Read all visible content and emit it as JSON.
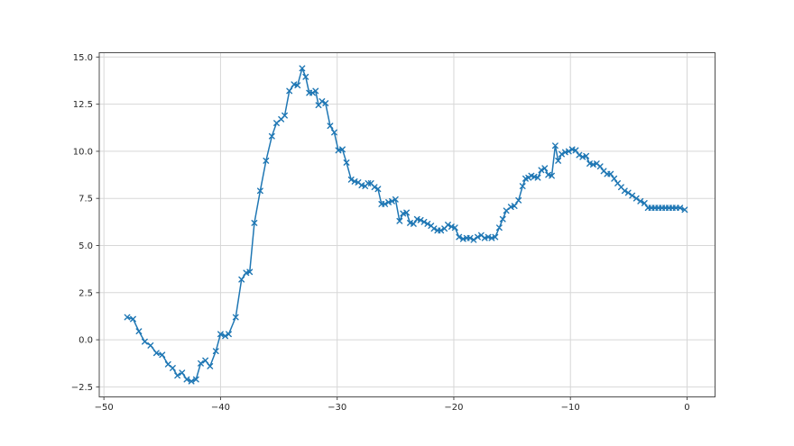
{
  "chart_data": {
    "type": "line",
    "title": "",
    "xlabel": "",
    "ylabel": "",
    "grid": true,
    "legend": null,
    "xlim": [
      -50.4,
      2.4
    ],
    "ylim": [
      -3.03,
      15.23
    ],
    "x_ticks": [
      -50,
      -40,
      -30,
      -20,
      -10,
      0
    ],
    "x_tick_labels": [
      "−50",
      "−40",
      "−30",
      "−20",
      "−10",
      "0"
    ],
    "y_ticks": [
      -2.5,
      0.0,
      2.5,
      5.0,
      7.5,
      10.0,
      12.5,
      15.0
    ],
    "y_tick_labels": [
      "−2.5",
      "0.0",
      "2.5",
      "5.0",
      "7.5",
      "10.0",
      "12.5",
      "15.0"
    ],
    "colors": {
      "line": "#1f77b4",
      "grid": "#d7d7d7",
      "spine": "#4d4d4d",
      "tick": "#4d4d4d",
      "text": "#262626",
      "background": "#ffffff"
    },
    "marker": "x",
    "series": [
      {
        "name": "series-1",
        "points": [
          [
            -48.0,
            1.2
          ],
          [
            -47.5,
            1.1
          ],
          [
            -47.0,
            0.45
          ],
          [
            -46.5,
            -0.1
          ],
          [
            -46.0,
            -0.3
          ],
          [
            -45.5,
            -0.7
          ],
          [
            -45.0,
            -0.8
          ],
          [
            -44.5,
            -1.3
          ],
          [
            -44.1,
            -1.5
          ],
          [
            -43.7,
            -1.9
          ],
          [
            -43.3,
            -1.75
          ],
          [
            -42.9,
            -2.1
          ],
          [
            -42.5,
            -2.2
          ],
          [
            -42.1,
            -2.1
          ],
          [
            -41.7,
            -1.25
          ],
          [
            -41.3,
            -1.1
          ],
          [
            -40.9,
            -1.4
          ],
          [
            -40.4,
            -0.6
          ],
          [
            -40.0,
            0.3
          ],
          [
            -39.6,
            0.2
          ],
          [
            -39.3,
            0.3
          ],
          [
            -38.7,
            1.2
          ],
          [
            -38.2,
            3.2
          ],
          [
            -37.8,
            3.55
          ],
          [
            -37.5,
            3.6
          ],
          [
            -37.1,
            6.2
          ],
          [
            -36.6,
            7.9
          ],
          [
            -36.1,
            9.5
          ],
          [
            -35.6,
            10.8
          ],
          [
            -35.2,
            11.5
          ],
          [
            -34.8,
            11.7
          ],
          [
            -34.5,
            11.9
          ],
          [
            -34.1,
            13.2
          ],
          [
            -33.7,
            13.55
          ],
          [
            -33.4,
            13.5
          ],
          [
            -33.0,
            14.4
          ],
          [
            -32.7,
            13.95
          ],
          [
            -32.4,
            13.1
          ],
          [
            -32.1,
            13.1
          ],
          [
            -31.85,
            13.2
          ],
          [
            -31.6,
            12.45
          ],
          [
            -31.3,
            12.65
          ],
          [
            -31.0,
            12.55
          ],
          [
            -30.6,
            11.35
          ],
          [
            -30.25,
            11.0
          ],
          [
            -29.9,
            10.05
          ],
          [
            -29.55,
            10.1
          ],
          [
            -29.2,
            9.4
          ],
          [
            -28.8,
            8.5
          ],
          [
            -28.5,
            8.4
          ],
          [
            -28.2,
            8.35
          ],
          [
            -27.9,
            8.2
          ],
          [
            -27.6,
            8.15
          ],
          [
            -27.35,
            8.3
          ],
          [
            -27.1,
            8.3
          ],
          [
            -26.8,
            8.1
          ],
          [
            -26.5,
            8.0
          ],
          [
            -26.2,
            7.2
          ],
          [
            -25.9,
            7.2
          ],
          [
            -25.6,
            7.3
          ],
          [
            -25.3,
            7.35
          ],
          [
            -25.0,
            7.45
          ],
          [
            -24.65,
            6.3
          ],
          [
            -24.35,
            6.7
          ],
          [
            -24.05,
            6.75
          ],
          [
            -23.75,
            6.2
          ],
          [
            -23.45,
            6.15
          ],
          [
            -23.15,
            6.4
          ],
          [
            -22.85,
            6.35
          ],
          [
            -22.55,
            6.25
          ],
          [
            -22.25,
            6.15
          ],
          [
            -21.95,
            6.05
          ],
          [
            -21.7,
            5.9
          ],
          [
            -21.4,
            5.8
          ],
          [
            -21.1,
            5.8
          ],
          [
            -20.8,
            5.9
          ],
          [
            -20.5,
            6.1
          ],
          [
            -20.2,
            6.0
          ],
          [
            -19.9,
            5.95
          ],
          [
            -19.55,
            5.45
          ],
          [
            -19.2,
            5.35
          ],
          [
            -18.9,
            5.4
          ],
          [
            -18.6,
            5.4
          ],
          [
            -18.3,
            5.3
          ],
          [
            -17.95,
            5.45
          ],
          [
            -17.65,
            5.55
          ],
          [
            -17.35,
            5.4
          ],
          [
            -17.05,
            5.45
          ],
          [
            -16.75,
            5.4
          ],
          [
            -16.45,
            5.45
          ],
          [
            -16.1,
            5.95
          ],
          [
            -15.8,
            6.4
          ],
          [
            -15.5,
            6.85
          ],
          [
            -15.1,
            7.05
          ],
          [
            -14.8,
            7.1
          ],
          [
            -14.45,
            7.4
          ],
          [
            -14.1,
            8.15
          ],
          [
            -13.85,
            8.55
          ],
          [
            -13.6,
            8.6
          ],
          [
            -13.35,
            8.7
          ],
          [
            -13.1,
            8.65
          ],
          [
            -12.8,
            8.6
          ],
          [
            -12.5,
            9.0
          ],
          [
            -12.2,
            9.1
          ],
          [
            -11.9,
            8.75
          ],
          [
            -11.6,
            8.7
          ],
          [
            -11.3,
            10.3
          ],
          [
            -11.05,
            9.5
          ],
          [
            -10.75,
            9.85
          ],
          [
            -10.45,
            9.95
          ],
          [
            -10.15,
            10.0
          ],
          [
            -9.85,
            10.1
          ],
          [
            -9.55,
            10.05
          ],
          [
            -9.25,
            9.8
          ],
          [
            -8.95,
            9.7
          ],
          [
            -8.65,
            9.75
          ],
          [
            -8.35,
            9.35
          ],
          [
            -8.05,
            9.3
          ],
          [
            -7.75,
            9.35
          ],
          [
            -7.45,
            9.2
          ],
          [
            -7.15,
            8.95
          ],
          [
            -6.85,
            8.8
          ],
          [
            -6.55,
            8.8
          ],
          [
            -6.25,
            8.55
          ],
          [
            -5.95,
            8.3
          ],
          [
            -5.65,
            8.1
          ],
          [
            -5.35,
            7.9
          ],
          [
            -5.05,
            7.8
          ],
          [
            -4.7,
            7.65
          ],
          [
            -4.35,
            7.5
          ],
          [
            -4.0,
            7.35
          ],
          [
            -3.65,
            7.25
          ],
          [
            -3.35,
            7.0
          ],
          [
            -3.05,
            7.0
          ],
          [
            -2.75,
            7.0
          ],
          [
            -2.45,
            7.0
          ],
          [
            -2.15,
            7.0
          ],
          [
            -1.85,
            7.0
          ],
          [
            -1.55,
            7.0
          ],
          [
            -1.25,
            7.0
          ],
          [
            -0.95,
            7.0
          ],
          [
            -0.6,
            7.0
          ],
          [
            -0.2,
            6.9
          ]
        ]
      }
    ]
  }
}
